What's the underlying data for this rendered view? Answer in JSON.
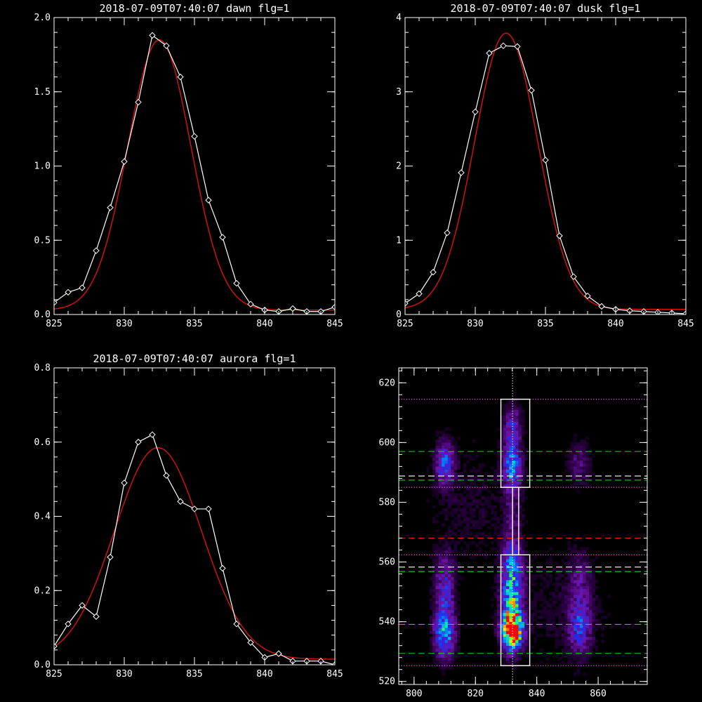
{
  "chart_data": [
    {
      "type": "line",
      "title": "2018-07-09T07:40:07 dawn flg=1",
      "xlim": [
        825,
        845
      ],
      "ylim": [
        0,
        2.0
      ],
      "xticks": [
        "825",
        "830",
        "835",
        "840",
        "845"
      ],
      "yticks": [
        "0.0",
        "0.5",
        "1.0",
        "1.5",
        "2.0"
      ],
      "series": [
        {
          "style": "white-line-diamonds",
          "x": [
            825,
            826,
            827,
            828,
            829,
            830,
            831,
            832,
            833,
            834,
            835,
            836,
            837,
            838,
            839,
            840,
            841,
            842,
            843,
            844,
            845
          ],
          "y": [
            0.08,
            0.15,
            0.18,
            0.43,
            0.72,
            1.03,
            1.43,
            1.88,
            1.81,
            1.6,
            1.2,
            0.77,
            0.52,
            0.21,
            0.07,
            0.03,
            0.02,
            0.04,
            0.02,
            0.02,
            0.05
          ]
        },
        {
          "style": "red-gaussian-fit",
          "amp": 1.82,
          "center": 832.5,
          "sigma": 2.25,
          "offset": 0.03
        }
      ]
    },
    {
      "type": "line",
      "title": "2018-07-09T07:40:07 dusk flg=1",
      "xlim": [
        825,
        845
      ],
      "ylim": [
        0,
        4
      ],
      "xticks": [
        "825",
        "830",
        "835",
        "840",
        "845"
      ],
      "yticks": [
        "0",
        "1",
        "2",
        "3",
        "4"
      ],
      "series": [
        {
          "style": "white-line-diamonds",
          "x": [
            825,
            826,
            827,
            828,
            829,
            830,
            831,
            832,
            833,
            834,
            835,
            836,
            837,
            838,
            839,
            840,
            841,
            842,
            843,
            844,
            845
          ],
          "y": [
            0.15,
            0.28,
            0.57,
            1.1,
            1.91,
            2.73,
            3.52,
            3.62,
            3.61,
            3.02,
            2.08,
            1.06,
            0.51,
            0.25,
            0.11,
            0.07,
            0.05,
            0.04,
            0.03,
            0.02,
            0.01
          ]
        },
        {
          "style": "red-gaussian-fit",
          "amp": 3.72,
          "center": 832.2,
          "sigma": 2.25,
          "offset": 0.07
        }
      ]
    },
    {
      "type": "line",
      "title": "2018-07-09T07:40:07 aurora flg=1",
      "xlim": [
        825,
        845
      ],
      "ylim": [
        0,
        0.8
      ],
      "xticks": [
        "825",
        "830",
        "835",
        "840",
        "845"
      ],
      "yticks": [
        "0.0",
        "0.2",
        "0.4",
        "0.6",
        "0.8"
      ],
      "series": [
        {
          "style": "white-line-diamonds",
          "x": [
            825,
            826,
            827,
            828,
            829,
            830,
            831,
            832,
            833,
            834,
            835,
            836,
            837,
            838,
            839,
            840,
            841,
            842,
            843,
            844,
            845
          ],
          "y": [
            0.05,
            0.11,
            0.16,
            0.13,
            0.29,
            0.49,
            0.6,
            0.62,
            0.51,
            0.44,
            0.42,
            0.42,
            0.26,
            0.11,
            0.06,
            0.02,
            0.03,
            0.01,
            0.01,
            0.01,
            0.0
          ]
        },
        {
          "style": "red-gaussian-fit",
          "amp": 0.57,
          "center": 832.4,
          "sigma": 3.1,
          "offset": 0.015
        }
      ]
    },
    {
      "type": "heatmap",
      "title": "",
      "xlim": [
        795,
        876
      ],
      "ylim": [
        519,
        625
      ],
      "xticks": [
        "800",
        "820",
        "840",
        "860"
      ],
      "yticks": [
        "520",
        "540",
        "560",
        "580",
        "600",
        "620"
      ],
      "blobs": [
        {
          "x": 810,
          "y": 537,
          "sx": 2.3,
          "sy": 6,
          "amp": 0.55
        },
        {
          "x": 810,
          "y": 553,
          "sx": 2.2,
          "sy": 7,
          "amp": 0.28
        },
        {
          "x": 810,
          "y": 593,
          "sx": 2.0,
          "sy": 5,
          "amp": 0.38
        },
        {
          "x": 832,
          "y": 537,
          "sx": 2.2,
          "sy": 4,
          "amp": 1.0
        },
        {
          "x": 832,
          "y": 545,
          "sx": 2.4,
          "sy": 8,
          "amp": 0.55
        },
        {
          "x": 832,
          "y": 558,
          "sx": 2.2,
          "sy": 6,
          "amp": 0.35
        },
        {
          "x": 832,
          "y": 592,
          "sx": 2.0,
          "sy": 5,
          "amp": 0.5
        },
        {
          "x": 832,
          "y": 605,
          "sx": 2.0,
          "sy": 5,
          "amp": 0.3
        },
        {
          "x": 832,
          "y": 575,
          "sx": 2.0,
          "sy": 9,
          "amp": 0.14
        },
        {
          "x": 854,
          "y": 538,
          "sx": 2.5,
          "sy": 6,
          "amp": 0.33
        },
        {
          "x": 854,
          "y": 593,
          "sx": 2.5,
          "sy": 5,
          "amp": 0.17
        },
        {
          "x": 854,
          "y": 553,
          "sx": 2.5,
          "sy": 7,
          "amp": 0.15
        },
        {
          "x": 818,
          "y": 580,
          "sx": 10,
          "sy": 15,
          "amp": 0.06
        },
        {
          "x": 848,
          "y": 545,
          "sx": 12,
          "sy": 15,
          "amp": 0.06
        }
      ],
      "boxes": [
        {
          "x0": 828.3,
          "x1": 837.7,
          "y0": 585.0,
          "y1": 614.5
        },
        {
          "x0": 828.3,
          "x1": 837.7,
          "y0": 525.3,
          "y1": 562.4
        },
        {
          "x0": 832.1,
          "x1": 834.1,
          "y0": 562.4,
          "y1": 585.0
        }
      ],
      "hlines": [
        {
          "y": 614.5,
          "color": "#ff66ff",
          "style": "dotted"
        },
        {
          "y": 597.0,
          "color": "#22cc22",
          "style": "dashed"
        },
        {
          "y": 588.8,
          "color": "#ffffff",
          "style": "dashed"
        },
        {
          "y": 587.4,
          "color": "#22cc22",
          "style": "dashed"
        },
        {
          "y": 585.0,
          "color": "#ff66ff",
          "style": "dotted"
        },
        {
          "y": 568.0,
          "color": "#dd2222",
          "style": "dashed"
        },
        {
          "y": 562.4,
          "color": "#ff66ff",
          "style": "dotted"
        },
        {
          "y": 558.3,
          "color": "#ffffff",
          "style": "dashed"
        },
        {
          "y": 556.8,
          "color": "#22cc22",
          "style": "dashed"
        },
        {
          "y": 539.1,
          "color": "#22cc22",
          "style": "dashed"
        },
        {
          "y": 529.4,
          "color": "#22cc22",
          "style": "dashed"
        },
        {
          "y": 525.3,
          "color": "#ff66ff",
          "style": "dotted"
        }
      ],
      "vlines": [
        {
          "x": 832.1,
          "color": "#ffffff",
          "style": "dotted"
        }
      ]
    }
  ]
}
